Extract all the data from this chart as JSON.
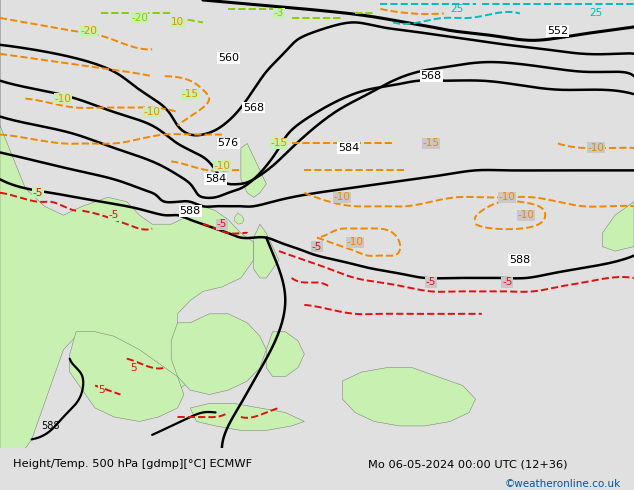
{
  "title_left": "Height/Temp. 500 hPa [gdmp][°C] ECMWF",
  "title_right": "Mo 06-05-2024 00:00 UTC (12+36)",
  "credit": "©weatheronline.co.uk",
  "sea_color": "#c8c8c8",
  "land_light": "#c8f0b0",
  "land_gray": "#b0b0b0",
  "bottom_bg": "#e0e0e0",
  "text_color": "#000000",
  "credit_color": "#0055aa",
  "black": "#000000",
  "red": "#dd1111",
  "orange": "#ee8800",
  "cyan": "#00bbbb",
  "green_dash": "#88cc00",
  "fig_width": 6.34,
  "fig_height": 4.9,
  "dpi": 100
}
